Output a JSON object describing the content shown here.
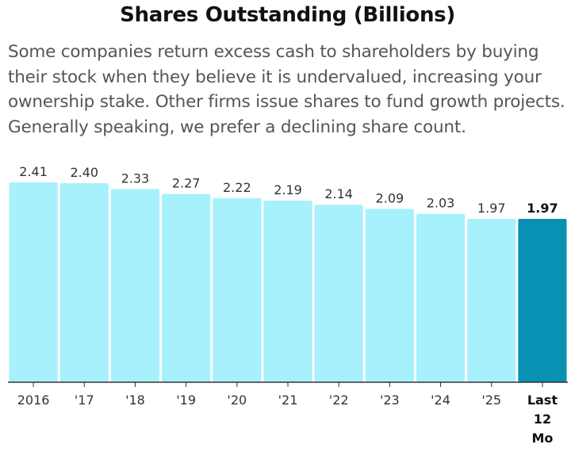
{
  "title": "Shares Outstanding (Billions)",
  "subtitle": "Some companies return excess cash to shareholders by buying their stock when they believe it is undervalued, increasing your ownership stake. Other firms issue shares to fund growth projects. Generally speaking, we prefer a declining share count.",
  "chart_data": {
    "type": "bar",
    "categories": [
      "2016",
      "'17",
      "'18",
      "'19",
      "'20",
      "'21",
      "'22",
      "'23",
      "'24",
      "'25",
      "Last 12 Mo"
    ],
    "values": [
      2.41,
      2.4,
      2.33,
      2.27,
      2.22,
      2.19,
      2.14,
      2.09,
      2.03,
      1.97,
      1.97
    ],
    "value_labels": [
      "2.41",
      "2.40",
      "2.33",
      "2.27",
      "2.22",
      "2.19",
      "2.14",
      "2.09",
      "2.03",
      "1.97",
      "1.97"
    ],
    "title": "Shares Outstanding (Billions)",
    "xlabel": "",
    "ylabel": "",
    "ylim": [
      0,
      2.41
    ],
    "grid": false,
    "legend": "none",
    "highlight_index": 10,
    "colors": {
      "bar": "#a6f1fb",
      "highlight": "#0891b2",
      "axis": "#333333",
      "label": "#333333",
      "highlight_label": "#111111"
    }
  }
}
